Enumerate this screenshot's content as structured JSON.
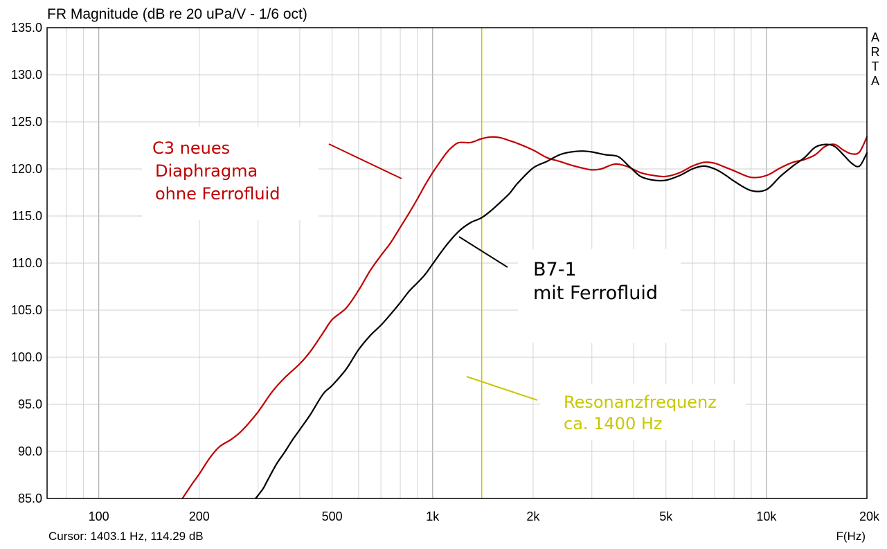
{
  "chart_data": {
    "type": "line",
    "title": "FR Magnitude (dB re 20 uPa/V - 1/6 oct)",
    "xlabel": "F(Hz)",
    "xscale": "log",
    "xlim": [
      70,
      20000
    ],
    "ylim": [
      85,
      135
    ],
    "grid": true,
    "x_ticks": [
      {
        "v": 100,
        "label": "100"
      },
      {
        "v": 200,
        "label": "200"
      },
      {
        "v": 500,
        "label": "500"
      },
      {
        "v": 1000,
        "label": "1k"
      },
      {
        "v": 2000,
        "label": "2k"
      },
      {
        "v": 5000,
        "label": "5k"
      },
      {
        "v": 10000,
        "label": "10k"
      },
      {
        "v": 20000,
        "label": "20k"
      }
    ],
    "y_ticks": [
      {
        "v": 85,
        "label": "85.0"
      },
      {
        "v": 90,
        "label": "90.0"
      },
      {
        "v": 95,
        "label": "95.0"
      },
      {
        "v": 100,
        "label": "100.0"
      },
      {
        "v": 105,
        "label": "105.0"
      },
      {
        "v": 110,
        "label": "110.0"
      },
      {
        "v": 115,
        "label": "115.0"
      },
      {
        "v": 120,
        "label": "120.0"
      },
      {
        "v": 125,
        "label": "125.0"
      },
      {
        "v": 130,
        "label": "130.0"
      },
      {
        "v": 135,
        "label": "135.0"
      }
    ],
    "cursor_text": "Cursor: 1403.1 Hz, 114.29 dB",
    "cursor_x": 1403.1,
    "brand": "ARTA",
    "series": [
      {
        "name": "C3 neues Diaphragma ohne Ferrofluid",
        "color": "#c00000",
        "x": [
          178,
          190,
          200,
          215,
          230,
          250,
          270,
          300,
          330,
          360,
          400,
          430,
          470,
          500,
          550,
          600,
          650,
          700,
          750,
          800,
          850,
          900,
          950,
          1000,
          1050,
          1100,
          1150,
          1200,
          1300,
          1400,
          1500,
          1600,
          1700,
          1800,
          2000,
          2200,
          2400,
          2600,
          2800,
          3000,
          3200,
          3500,
          3800,
          4200,
          4600,
          5000,
          5500,
          6000,
          6500,
          7000,
          7500,
          8000,
          9000,
          10000,
          11000,
          12000,
          13000,
          14000,
          15000,
          16000,
          17000,
          18000,
          19000,
          20000
        ],
        "y": [
          85.0,
          86.5,
          87.6,
          89.3,
          90.5,
          91.3,
          92.3,
          94.2,
          96.3,
          97.8,
          99.3,
          100.6,
          102.6,
          104.0,
          105.2,
          107.1,
          109.2,
          110.8,
          112.2,
          113.8,
          115.3,
          116.8,
          118.3,
          119.6,
          120.7,
          121.7,
          122.4,
          122.8,
          122.8,
          123.2,
          123.4,
          123.3,
          123.0,
          122.7,
          122.0,
          121.2,
          120.8,
          120.4,
          120.1,
          119.9,
          120.0,
          120.5,
          120.3,
          119.6,
          119.3,
          119.2,
          119.6,
          120.3,
          120.7,
          120.6,
          120.2,
          119.8,
          119.1,
          119.3,
          120.1,
          120.7,
          121.0,
          121.5,
          122.4,
          122.6,
          122.0,
          121.6,
          121.8,
          123.4
        ]
      },
      {
        "name": "B7-1 mit Ferrofluid",
        "color": "#000000",
        "x": [
          295,
          310,
          320,
          340,
          360,
          380,
          400,
          430,
          470,
          500,
          550,
          600,
          650,
          700,
          750,
          800,
          850,
          900,
          950,
          1000,
          1100,
          1200,
          1300,
          1400,
          1500,
          1600,
          1700,
          1800,
          2000,
          2200,
          2400,
          2600,
          2800,
          3000,
          3300,
          3600,
          3900,
          4200,
          4600,
          5000,
          5500,
          6000,
          6500,
          7000,
          7500,
          8000,
          9000,
          10000,
          11000,
          12000,
          13000,
          14000,
          15000,
          16000,
          17000,
          18000,
          19000,
          20000
        ],
        "y": [
          85.0,
          86.0,
          86.9,
          88.6,
          89.9,
          91.2,
          92.3,
          93.9,
          96.1,
          97.0,
          98.7,
          100.8,
          102.3,
          103.4,
          104.6,
          105.8,
          107.0,
          107.9,
          108.8,
          109.9,
          111.9,
          113.4,
          114.3,
          114.8,
          115.6,
          116.5,
          117.4,
          118.5,
          120.1,
          120.8,
          121.5,
          121.8,
          121.9,
          121.8,
          121.5,
          121.3,
          120.2,
          119.2,
          118.8,
          118.8,
          119.3,
          120.0,
          120.3,
          120.0,
          119.4,
          118.7,
          117.7,
          117.8,
          119.2,
          120.3,
          121.2,
          122.3,
          122.6,
          122.4,
          121.5,
          120.6,
          120.3,
          121.7
        ]
      }
    ],
    "annotations": [
      {
        "lines": [
          "C3 neues",
          "Diaphragma",
          "ohne Ferrofluid"
        ],
        "color": "#c00000"
      },
      {
        "lines": [
          "B7-1",
          "mit Ferrofluid"
        ],
        "color": "#000000"
      },
      {
        "lines": [
          "Resonanzfrequenz",
          "ca. 1400 Hz"
        ],
        "color": "#c8c800"
      }
    ]
  }
}
